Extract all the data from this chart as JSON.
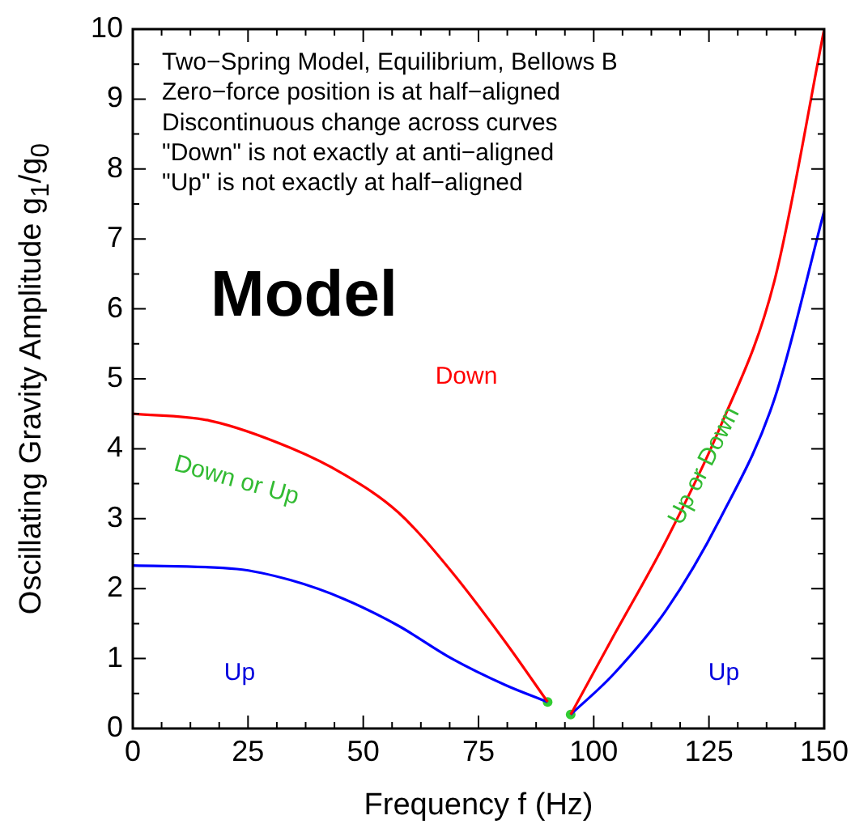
{
  "chart_data": {
    "type": "line",
    "xlabel": "Frequency f (Hz)",
    "ylabel": "Oscillating Gravity Amplitude g$_{1}$/g$_{0}$",
    "xlim": [
      0,
      150
    ],
    "ylim": [
      0,
      10
    ],
    "xticks": [
      0,
      {
        "value": 6.25,
        "label": null
      },
      {
        "value": 12.5,
        "label": null
      },
      {
        "value": 18.75,
        "label": null
      },
      25,
      {
        "value": 31.25,
        "label": null
      },
      {
        "value": 37.5,
        "label": null
      },
      {
        "value": 43.75,
        "label": null
      },
      50,
      {
        "value": 56.25,
        "label": null
      },
      {
        "value": 62.5,
        "label": null
      },
      {
        "value": 68.75,
        "label": null
      },
      75,
      {
        "value": 81.25,
        "label": null
      },
      {
        "value": 87.5,
        "label": null
      },
      {
        "value": 93.75,
        "label": null
      },
      100,
      {
        "value": 106.25,
        "label": null
      },
      {
        "value": 112.5,
        "label": null
      },
      {
        "value": 118.75,
        "label": null
      },
      125,
      {
        "value": 131.25,
        "label": null
      },
      {
        "value": 137.5,
        "label": null
      },
      {
        "value": 143.75,
        "label": null
      },
      150
    ],
    "yticks": [
      0,
      {
        "value": 0.5,
        "label": null
      },
      1,
      {
        "value": 1.5,
        "label": null
      },
      2,
      {
        "value": 2.5,
        "label": null
      },
      3,
      {
        "value": 3.5,
        "label": null
      },
      4,
      {
        "value": 4.5,
        "label": null
      },
      5,
      {
        "value": 5.5,
        "label": null
      },
      6,
      {
        "value": 6.5,
        "label": null
      },
      7,
      {
        "value": 7.5,
        "label": null
      },
      8,
      {
        "value": 8.5,
        "label": null
      },
      9,
      {
        "value": 9.5,
        "label": null
      },
      10
    ],
    "marker": "none",
    "line_style": "solid",
    "legend": false,
    "series": [
      {
        "color": "#ff0000",
        "x": [
          0,
          16.8,
          34.3,
          45.9,
          57.6,
          69.2,
          80.9,
          90
        ],
        "values": [
          4.5,
          4.4,
          4.01,
          3.63,
          3.09,
          2.24,
          1.23,
          0.38
        ]
      },
      {
        "color": "#0000ff",
        "x": [
          0,
          22.6,
          34.3,
          45.9,
          57.6,
          69.2,
          80.9,
          90
        ],
        "values": [
          2.33,
          2.28,
          2.12,
          1.85,
          1.47,
          1.0,
          0.62,
          0.38
        ]
      },
      {
        "color": "#ff0000",
        "x": [
          95,
          104.2,
          115.8,
          127.5,
          139.2,
          150
        ],
        "values": [
          0.2,
          1.31,
          2.7,
          4.32,
          6.4,
          10
        ]
      },
      {
        "color": "#0000ff",
        "x": [
          95,
          104.2,
          115.8,
          127.5,
          139.2,
          150
        ],
        "values": [
          0.2,
          0.77,
          1.7,
          3.01,
          4.71,
          7.4
        ]
      },
      {
        "type": "scatter",
        "marker": "circle",
        "color": "#33cc33",
        "x": [
          90,
          95
        ],
        "values": [
          0.38,
          0.2
        ]
      }
    ],
    "annotations": [
      "Two−Spring Model, Equilibrium, Bellows B",
      "Zero−force position is at half−aligned",
      "Discontinuous change across curves",
      "\"Down\" is not exactly at anti−aligned",
      "\"Up\" is not exactly at half−aligned",
      "Model",
      "Down",
      "Down or Up",
      "Up",
      "Up",
      "Up or Down"
    ]
  }
}
